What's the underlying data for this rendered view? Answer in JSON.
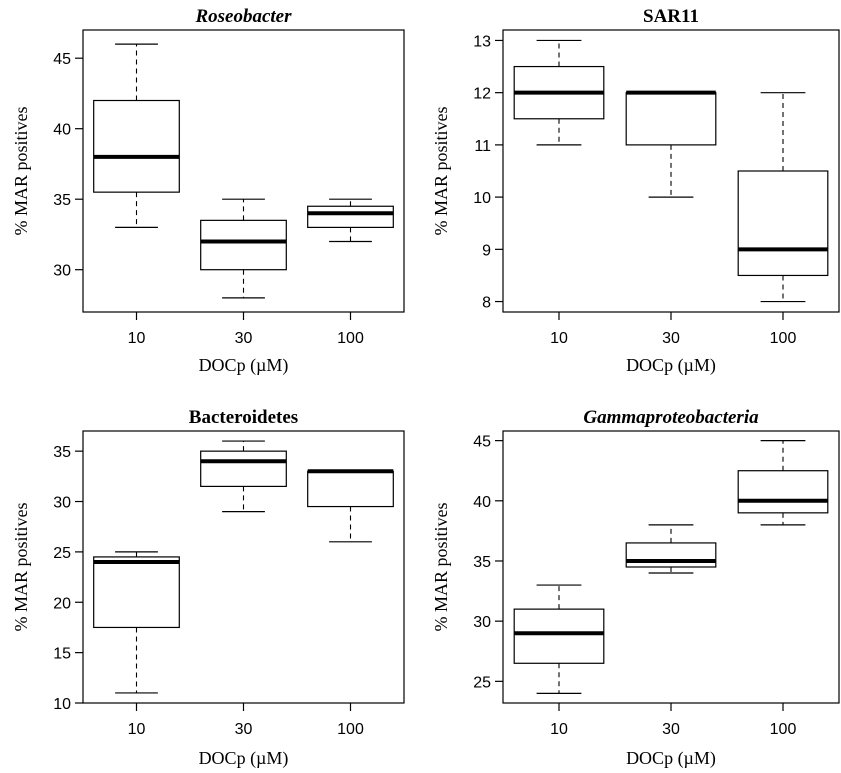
{
  "chart_data": [
    {
      "type": "box",
      "title": "Roseobacter",
      "title_italic": true,
      "xlabel": "DOCp (µM)",
      "ylabel": "% MAR positives",
      "categories": [
        "10",
        "30",
        "100"
      ],
      "ylim": [
        27,
        47
      ],
      "yticks": [
        30,
        35,
        40,
        45
      ],
      "boxes": [
        {
          "category": "10",
          "min": 33,
          "q1": 35.5,
          "median": 38,
          "q3": 42,
          "max": 46
        },
        {
          "category": "30",
          "min": 28,
          "q1": 30,
          "median": 32,
          "q3": 33.5,
          "max": 35
        },
        {
          "category": "100",
          "min": 32,
          "q1": 33,
          "median": 34,
          "q3": 34.5,
          "max": 35
        }
      ]
    },
    {
      "type": "box",
      "title": "SAR11",
      "title_italic": false,
      "xlabel": "DOCp (µM)",
      "ylabel": "% MAR positives",
      "categories": [
        "10",
        "30",
        "100"
      ],
      "ylim": [
        7.8,
        13.2
      ],
      "yticks": [
        8,
        9,
        10,
        11,
        12,
        13
      ],
      "boxes": [
        {
          "category": "10",
          "min": 11,
          "q1": 11.5,
          "median": 12,
          "q3": 12.5,
          "max": 13
        },
        {
          "category": "30",
          "min": 10,
          "q1": 11,
          "median": 12,
          "q3": 12,
          "max": 12
        },
        {
          "category": "100",
          "min": 8,
          "q1": 8.5,
          "median": 9,
          "q3": 10.5,
          "max": 12
        }
      ]
    },
    {
      "type": "box",
      "title": "Bacteroidetes",
      "title_italic": false,
      "xlabel": "DOCp (µM)",
      "ylabel": "% MAR positives",
      "categories": [
        "10",
        "30",
        "100"
      ],
      "ylim": [
        10,
        37
      ],
      "yticks": [
        10,
        15,
        20,
        25,
        30,
        35
      ],
      "boxes": [
        {
          "category": "10",
          "min": 11,
          "q1": 17.5,
          "median": 24,
          "q3": 24.5,
          "max": 25
        },
        {
          "category": "30",
          "min": 29,
          "q1": 31.5,
          "median": 34,
          "q3": 35,
          "max": 36
        },
        {
          "category": "100",
          "min": 26,
          "q1": 29.5,
          "median": 33,
          "q3": 33,
          "max": 33
        }
      ]
    },
    {
      "type": "box",
      "title": "Gammaproteobacteria",
      "title_italic": true,
      "xlabel": "DOCp (µM)",
      "ylabel": "% MAR positives",
      "categories": [
        "10",
        "30",
        "100"
      ],
      "ylim": [
        23.2,
        45.8
      ],
      "yticks": [
        25,
        30,
        35,
        40,
        45
      ],
      "boxes": [
        {
          "category": "10",
          "min": 24,
          "q1": 26.5,
          "median": 29,
          "q3": 31,
          "max": 33
        },
        {
          "category": "30",
          "min": 34,
          "q1": 34.5,
          "median": 35,
          "q3": 36.5,
          "max": 38
        },
        {
          "category": "100",
          "min": 38,
          "q1": 39,
          "median": 40,
          "q3": 42.5,
          "max": 45
        }
      ]
    }
  ]
}
